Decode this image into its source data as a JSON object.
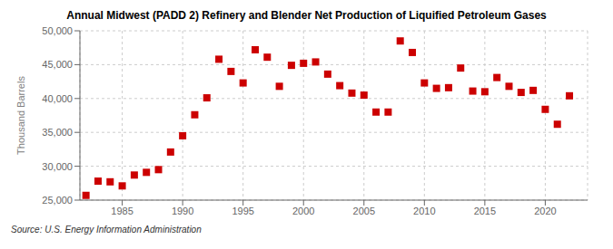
{
  "chart_data": {
    "type": "scatter",
    "title": "Annual Midwest (PADD 2) Refinery and Blender Net Production of Liquified Petroleum Gases",
    "ylabel": "Thousand Barrels",
    "annotations": [
      "Source: U.S. Energy Information Administration"
    ],
    "color": "#cc0000",
    "marker": "square",
    "grid": true,
    "xlim": [
      1981.5,
      2023.5
    ],
    "ylim": [
      25000,
      50000
    ],
    "xticks": [
      1985,
      1990,
      1995,
      2000,
      2005,
      2010,
      2015,
      2020
    ],
    "yticks": [
      {
        "value": 25000,
        "label": "25,000"
      },
      {
        "value": 30000,
        "label": "30,000"
      },
      {
        "value": 35000,
        "label": "35,000"
      },
      {
        "value": 40000,
        "label": "40,000"
      },
      {
        "value": 45000,
        "label": "45,000"
      },
      {
        "value": 50000,
        "label": "50,000"
      }
    ],
    "x": [
      1982,
      1983,
      1984,
      1985,
      1986,
      1987,
      1988,
      1989,
      1990,
      1991,
      1992,
      1993,
      1994,
      1995,
      1996,
      1997,
      1998,
      1999,
      2000,
      2001,
      2002,
      2003,
      2004,
      2005,
      2006,
      2007,
      2008,
      2009,
      2010,
      2011,
      2012,
      2013,
      2014,
      2015,
      2016,
      2017,
      2018,
      2019,
      2020,
      2021,
      2022
    ],
    "values": [
      25700,
      27800,
      27700,
      27100,
      28700,
      29100,
      29500,
      32100,
      34500,
      37600,
      40100,
      45800,
      44000,
      42300,
      47200,
      46100,
      41800,
      44900,
      45200,
      45400,
      43600,
      41900,
      40800,
      40500,
      38000,
      38000,
      48500,
      46800,
      42300,
      41500,
      41600,
      44500,
      41100,
      41000,
      43100,
      41800,
      40900,
      41200,
      38400,
      36200,
      40400
    ]
  }
}
